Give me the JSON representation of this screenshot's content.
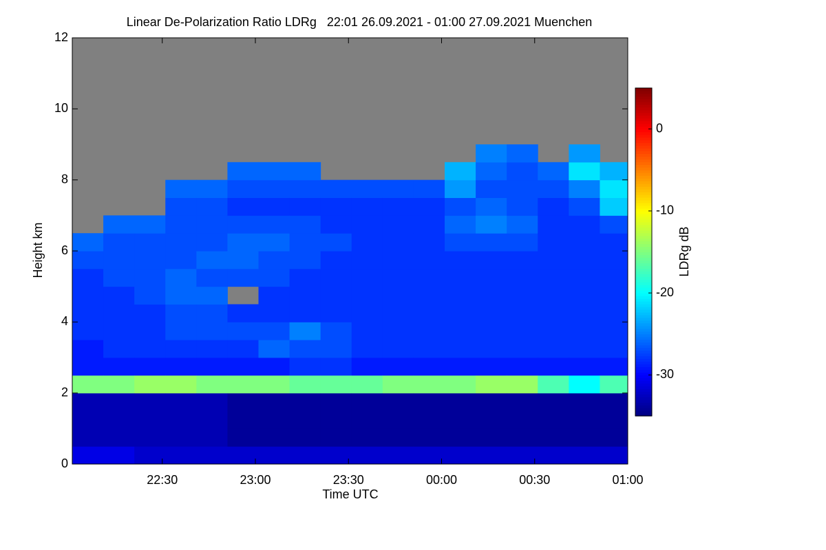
{
  "chart_data": {
    "type": "heatmap",
    "title": "Linear De-Polarization Ratio LDRg   22:01 26.09.2021 - 01:00 27.09.2021 Muenchen",
    "x_label": "Time UTC",
    "y_label": "Height km",
    "colorbar_label": "LDRg dB",
    "xlim": [
      1,
      180
    ],
    "xticks": [
      {
        "value": 30,
        "label": "22:30"
      },
      {
        "value": 60,
        "label": "23:00"
      },
      {
        "value": 90,
        "label": "23:30"
      },
      {
        "value": 120,
        "label": "00:00"
      },
      {
        "value": 150,
        "label": "00:30"
      },
      {
        "value": 180,
        "label": "01:00"
      }
    ],
    "ylim": [
      0,
      12
    ],
    "yticks": [
      0,
      2,
      4,
      6,
      8,
      10,
      12
    ],
    "clim": [
      -35,
      5
    ],
    "cticks": [
      -30,
      -20,
      -10,
      0
    ],
    "colormap": "jet",
    "missing_color": "#808080",
    "x": [
      6,
      16,
      26,
      36,
      46,
      56,
      66,
      76,
      86,
      96,
      106,
      116,
      126,
      136,
      146,
      156,
      166,
      176
    ],
    "y": [
      0.25,
      0.75,
      1.25,
      1.75,
      2.25,
      2.75,
      3.25,
      3.75,
      4.25,
      4.75,
      5.25,
      5.75,
      6.25,
      6.75,
      7.25,
      7.75,
      8.25,
      8.75,
      9.25,
      9.75,
      10.25,
      10.75,
      11.25,
      11.75
    ],
    "z": [
      [
        -31,
        -33,
        -33,
        -33,
        -15,
        -29,
        -29,
        -28,
        -28,
        -28,
        -28,
        -27,
        -26,
        null,
        null,
        null,
        null,
        null,
        null,
        null,
        null,
        null,
        null,
        null
      ],
      [
        -31,
        -33,
        -33,
        -33,
        -15,
        -29,
        -28,
        -28,
        -28,
        -28,
        -27,
        -27,
        -27,
        -26,
        null,
        null,
        null,
        null,
        null,
        null,
        null,
        null,
        null,
        null
      ],
      [
        -32,
        -33,
        -33,
        -33,
        -14,
        -29,
        -28,
        -28,
        -28,
        -27,
        -27,
        -27,
        -27,
        -26,
        null,
        null,
        null,
        null,
        null,
        null,
        null,
        null,
        null,
        null
      ],
      [
        -32,
        -33,
        -33,
        -33,
        -14,
        -29,
        -28,
        -27,
        -27,
        -26,
        -26,
        -27,
        -27,
        -27,
        -27,
        -26,
        null,
        null,
        null,
        null,
        null,
        null,
        null,
        null
      ],
      [
        -32,
        -33,
        -33,
        -33,
        -15,
        -29,
        -28,
        -27,
        -27,
        -26,
        -27,
        -26,
        -27,
        -27,
        -27,
        -26,
        null,
        null,
        null,
        null,
        null,
        null,
        null,
        null
      ],
      [
        -32,
        -34,
        -34,
        -34,
        -15,
        -29,
        -28,
        -27,
        -28,
        null,
        -27,
        -26,
        -26,
        -27,
        -28,
        -27,
        -26,
        null,
        null,
        null,
        null,
        null,
        null,
        null
      ],
      [
        -32,
        -34,
        -34,
        -34,
        -15,
        -29,
        -26,
        -27,
        -28,
        -28,
        -27,
        -27,
        -26,
        -27,
        -28,
        -27,
        -26,
        null,
        null,
        null,
        null,
        null,
        null,
        null
      ],
      [
        -32,
        -34,
        -34,
        -34,
        -16,
        -28,
        -27,
        -25,
        -28,
        -28,
        -28,
        -27,
        -27,
        -27,
        -28,
        -27,
        -26,
        null,
        null,
        null,
        null,
        null,
        null,
        null
      ],
      [
        -32,
        -34,
        -34,
        -34,
        -16,
        -28,
        -27,
        -27,
        -28,
        -28,
        -28,
        -28,
        -27,
        -28,
        -28,
        -27,
        null,
        null,
        null,
        null,
        null,
        null,
        null,
        null
      ],
      [
        -32,
        -34,
        -34,
        -34,
        -16,
        -29,
        -28,
        -28,
        -28,
        -28,
        -28,
        -28,
        -28,
        -28,
        -28,
        -27,
        null,
        null,
        null,
        null,
        null,
        null,
        null,
        null
      ],
      [
        -32,
        -34,
        -34,
        -34,
        -15,
        -29,
        -28,
        -28,
        -28,
        -28,
        -28,
        -28,
        -28,
        -28,
        -28,
        -27,
        null,
        null,
        null,
        null,
        null,
        null,
        null,
        null
      ],
      [
        -32,
        -34,
        -34,
        -34,
        -15,
        -29,
        -28,
        -28,
        -28,
        -28,
        -28,
        -28,
        -28,
        -28,
        -28,
        -27,
        null,
        null,
        null,
        null,
        null,
        null,
        null,
        null
      ],
      [
        -32,
        -34,
        -34,
        -34,
        -15,
        -29,
        -28,
        -28,
        -28,
        -28,
        -28,
        -28,
        -27,
        -26,
        -27,
        -24,
        -23,
        null,
        null,
        null,
        null,
        null,
        null,
        null
      ],
      [
        -32,
        -34,
        -34,
        -34,
        -14,
        -29,
        -28,
        -28,
        -28,
        -28,
        -28,
        -28,
        -27,
        -25,
        -26,
        -27,
        -26,
        -25,
        null,
        null,
        null,
        null,
        null,
        null
      ],
      [
        -32,
        -34,
        -34,
        -34,
        -14,
        -29,
        -28,
        -28,
        -28,
        -28,
        -28,
        -28,
        -27,
        -26,
        -27,
        -27,
        -27,
        -26,
        null,
        null,
        null,
        null,
        null,
        null
      ],
      [
        -32,
        -34,
        -34,
        -34,
        -17,
        -29,
        -28,
        -28,
        -28,
        -28,
        -28,
        -28,
        -28,
        -28,
        -28,
        -27,
        -26,
        null,
        null,
        null,
        null,
        null,
        null,
        null
      ],
      [
        -32,
        -34,
        -34,
        -34,
        -20,
        -29,
        -28,
        -28,
        -28,
        -28,
        -28,
        -28,
        -28,
        -28,
        -27,
        -25,
        -21,
        -24,
        null,
        null,
        null,
        null,
        null,
        null
      ],
      [
        -32,
        -34,
        -34,
        -34,
        -17,
        -29,
        -28,
        -28,
        -28,
        -28,
        -28,
        -28,
        -28,
        -27,
        -22,
        -21,
        -23,
        null,
        null,
        null,
        null,
        null,
        null,
        null
      ]
    ]
  }
}
